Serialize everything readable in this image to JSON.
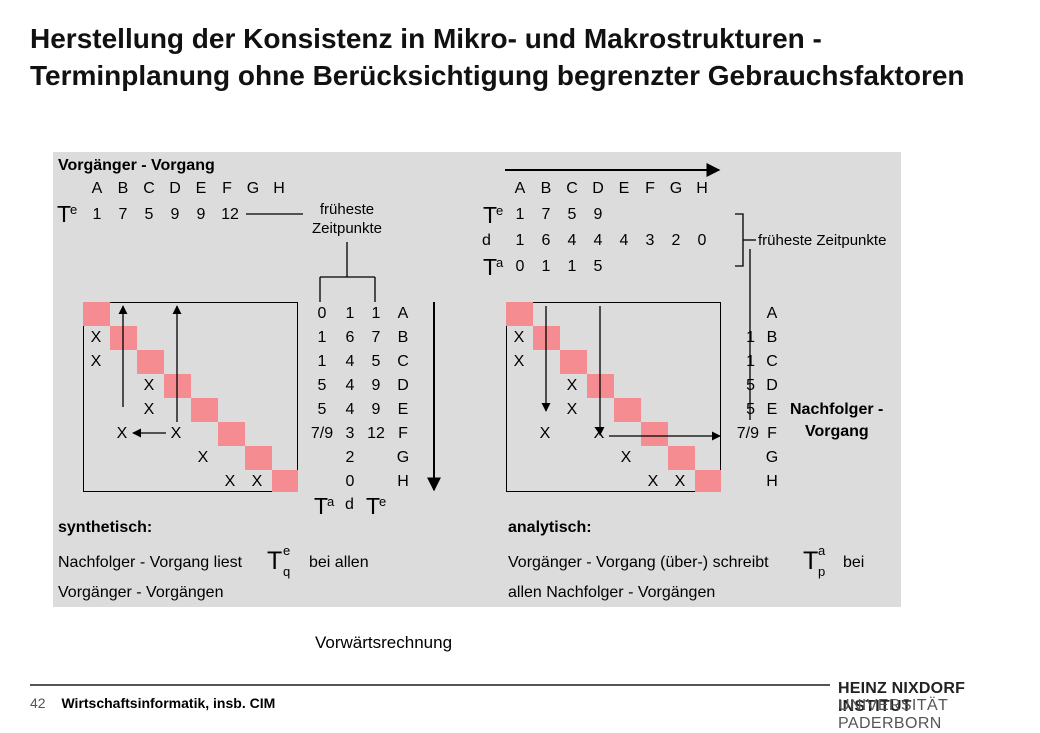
{
  "title": "Herstellung der Konsistenz in Mikro- und Makrostrukturen - Terminplanung ohne Berücksichtigung begrenzter Gebrauchsfaktoren",
  "colors": {
    "panel_bg": "#dcdcdc",
    "diag_cell": "#f58c92",
    "line": "#000000"
  },
  "left": {
    "heading": "Vorgänger - Vorgang",
    "letters": [
      "A",
      "B",
      "C",
      "D",
      "E",
      "F",
      "G",
      "H"
    ],
    "te_symbol": "T",
    "te_sup": "e",
    "te_values": [
      "1",
      "7",
      "5",
      "9",
      "9",
      "12"
    ],
    "label_line1": "früheste",
    "label_line2": "Zeitpunkte",
    "rows": [
      {
        "ta": "0",
        "d": "1",
        "te": "1",
        "name": "A",
        "marks": []
      },
      {
        "ta": "1",
        "d": "6",
        "te": "7",
        "name": "B",
        "marks": [
          "X"
        ]
      },
      {
        "ta": "1",
        "d": "4",
        "te": "5",
        "name": "C",
        "marks": [
          "X"
        ]
      },
      {
        "ta": "5",
        "d": "4",
        "te": "9",
        "name": "D",
        "marks": [
          "X"
        ]
      },
      {
        "ta": "5",
        "d": "4",
        "te": "9",
        "name": "E",
        "marks": [
          "X"
        ]
      },
      {
        "ta": "7/9",
        "d": "3",
        "te": "12",
        "name": "F",
        "marks": [
          "X",
          "X"
        ]
      },
      {
        "ta": "",
        "d": "2",
        "te": "",
        "name": "G",
        "marks": [
          "X"
        ]
      },
      {
        "ta": "",
        "d": "0",
        "te": "",
        "name": "H",
        "marks": [
          "X",
          "X"
        ]
      }
    ],
    "col_ta_symbol": "T",
    "col_ta_sup": "a",
    "col_d": "d",
    "col_te_symbol": "T",
    "col_te_sup": "e",
    "mode_label": "synthetisch:",
    "text1": "Nachfolger - Vorgang liest",
    "sym": "T",
    "sym_sup": "e",
    "sym_sub": "q",
    "text2": "bei allen",
    "text3": "Vorgänger - Vorgängen"
  },
  "right": {
    "letters": [
      "A",
      "B",
      "C",
      "D",
      "E",
      "F",
      "G",
      "H"
    ],
    "te_symbol": "T",
    "te_sup": "e",
    "te_values": [
      "1",
      "7",
      "5",
      "9"
    ],
    "d_label": "d",
    "d_values": [
      "1",
      "6",
      "4",
      "4",
      "4",
      "3",
      "2",
      "0"
    ],
    "ta_symbol": "T",
    "ta_sup": "a",
    "ta_values": [
      "0",
      "1",
      "1",
      "5"
    ],
    "label": "früheste Zeitpunkte",
    "rows": [
      {
        "ta": "",
        "name": "A",
        "marks": []
      },
      {
        "ta": "1",
        "name": "B",
        "marks": [
          "X"
        ]
      },
      {
        "ta": "1",
        "name": "C",
        "marks": [
          "X"
        ]
      },
      {
        "ta": "5",
        "name": "D",
        "marks": [
          "X"
        ]
      },
      {
        "ta": "5",
        "name": "E",
        "marks": [
          "X"
        ]
      },
      {
        "ta": "7/9",
        "name": "F",
        "marks": [
          "X",
          "X"
        ]
      },
      {
        "ta": "",
        "name": "G",
        "marks": [
          "X"
        ]
      },
      {
        "ta": "",
        "name": "H",
        "marks": [
          "X",
          "X"
        ]
      }
    ],
    "side_line1": "Nachfolger -",
    "side_line2": "Vorgang",
    "mode_label": "analytisch:",
    "text1": "Vorgänger - Vorgang (über-) schreibt",
    "sym": "T",
    "sym_sup": "a",
    "sym_sub": "p",
    "text2": "bei",
    "text3": "allen Nachfolger - Vorgängen"
  },
  "caption": "Vorwärtsrechnung",
  "footer": {
    "page": "42",
    "course": "Wirtschaftsinformatik, insb. CIM",
    "inst_line1": "HEINZ NIXDORF INSTITUT",
    "inst_line2": "UNIVERSITÄT PADERBORN"
  }
}
